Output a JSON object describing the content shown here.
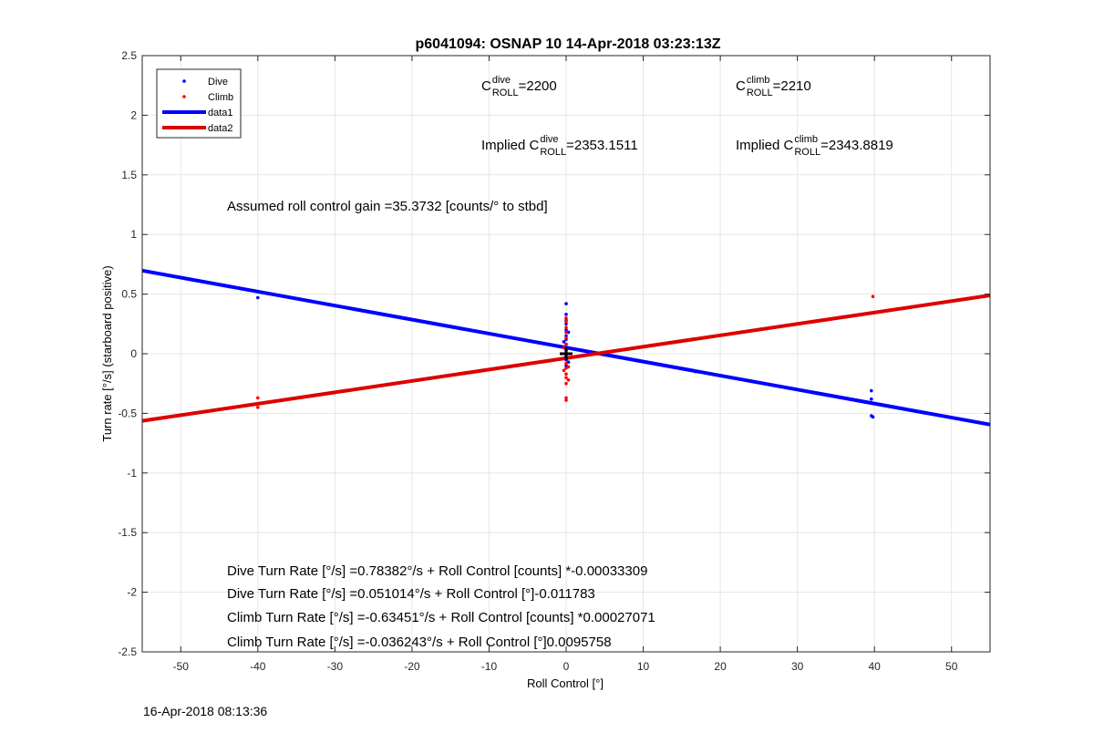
{
  "chart_data": {
    "type": "scatter",
    "title": "p6041094: OSNAP 10 14-Apr-2018 03:23:13Z",
    "xlabel": "Roll Control [°]",
    "ylabel": "Turn rate [°/s] (starboard positive)",
    "xlim": [
      -55,
      55
    ],
    "ylim": [
      -2.5,
      2.5
    ],
    "x_ticks": [
      -50,
      -40,
      -30,
      -20,
      -10,
      0,
      10,
      20,
      30,
      40,
      50
    ],
    "x_tick_labels": [
      "-50",
      "-40",
      "-30",
      "-20",
      "-10",
      "0",
      "10",
      "20",
      "30",
      "40",
      "50"
    ],
    "y_ticks": [
      2.5,
      2,
      1.5,
      1,
      0.5,
      0,
      -0.5,
      -1,
      -1.5,
      -2,
      -2.5
    ],
    "y_tick_labels": [
      "2.5",
      "2",
      "1.5",
      "1",
      "0.5",
      "0",
      "-0.5",
      "-1",
      "-1.5",
      "-2",
      "-2.5"
    ],
    "grid": true,
    "legend_position": "top-left",
    "legend": [
      "Dive",
      "Climb",
      "data1",
      "data2"
    ],
    "series": [
      {
        "name": "Dive",
        "kind": "points",
        "color": "#0000ff",
        "points": [
          [
            -40,
            0.47
          ],
          [
            0,
            0.42
          ],
          [
            0,
            0.33
          ],
          [
            0,
            0.28
          ],
          [
            0,
            0.25
          ],
          [
            0,
            0.2
          ],
          [
            0,
            0.15
          ],
          [
            0,
            0.12
          ],
          [
            0,
            0.08
          ],
          [
            0,
            0.05
          ],
          [
            0,
            0.03
          ],
          [
            0,
            0.0
          ],
          [
            0,
            -0.02
          ],
          [
            0,
            -0.05
          ],
          [
            0,
            -0.1
          ],
          [
            0.3,
            0.18
          ],
          [
            -0.3,
            0.1
          ],
          [
            0.3,
            -0.07
          ],
          [
            16.8,
            -0.15
          ],
          [
            39.6,
            -0.31
          ],
          [
            39.6,
            -0.38
          ],
          [
            39.6,
            -0.52
          ],
          [
            39.8,
            -0.53
          ]
        ]
      },
      {
        "name": "Climb",
        "kind": "points",
        "color": "#ff0000",
        "points": [
          [
            -40,
            -0.37
          ],
          [
            -40,
            -0.45
          ],
          [
            0,
            0.3
          ],
          [
            0,
            0.27
          ],
          [
            0,
            0.22
          ],
          [
            0,
            0.18
          ],
          [
            0,
            0.13
          ],
          [
            0,
            0.08
          ],
          [
            0,
            0.04
          ],
          [
            0,
            0.0
          ],
          [
            0,
            -0.04
          ],
          [
            0,
            -0.08
          ],
          [
            0,
            -0.12
          ],
          [
            0,
            -0.17
          ],
          [
            0,
            -0.2
          ],
          [
            0,
            -0.25
          ],
          [
            0,
            -0.37
          ],
          [
            0,
            -0.39
          ],
          [
            -0.3,
            -0.14
          ],
          [
            0.3,
            -0.11
          ],
          [
            -0.3,
            0.05
          ],
          [
            0.3,
            -0.22
          ],
          [
            39.8,
            0.48
          ]
        ]
      },
      {
        "name": "data1",
        "kind": "line",
        "color": "#0000ff",
        "x": [
          -55,
          55
        ],
        "y": [
          0.697,
          -0.594
        ]
      },
      {
        "name": "data2",
        "kind": "line",
        "color": "#dd0000",
        "x": [
          -55,
          55
        ],
        "y": [
          -0.563,
          0.489
        ]
      }
    ],
    "marker": {
      "x": 0,
      "y": 0,
      "color": "#000000"
    },
    "annotations": {
      "c_roll_dive": {
        "prefix": "C",
        "sup": "dive",
        "sub": "ROLL",
        "value": " =2200"
      },
      "c_roll_climb": {
        "prefix": "C",
        "sup": "climb",
        "sub": "ROLL",
        "value": " =2210"
      },
      "implied_dive": {
        "prefix": "Implied C",
        "sup": "dive",
        "sub": "ROLL",
        "value": " =2353.1511"
      },
      "implied_climb": {
        "prefix": "Implied C",
        "sup": "climb",
        "sub": "ROLL",
        "value": " =2343.8819"
      },
      "gain": "Assumed roll control gain =35.3732 [counts/° to stbd]",
      "fits": [
        "Dive Turn Rate [°/s] =0.78382°/s + Roll Control [counts] *-0.00033309",
        "Dive Turn Rate [°/s] =0.051014°/s + Roll Control [°]-0.011783",
        "Climb Turn Rate [°/s] =-0.63451°/s + Roll Control [counts] *0.00027071",
        "Climb Turn Rate [°/s] =-0.036243°/s + Roll Control [°]0.0095758"
      ]
    }
  },
  "footer": {
    "timestamp": "16-Apr-2018 08:13:36"
  }
}
